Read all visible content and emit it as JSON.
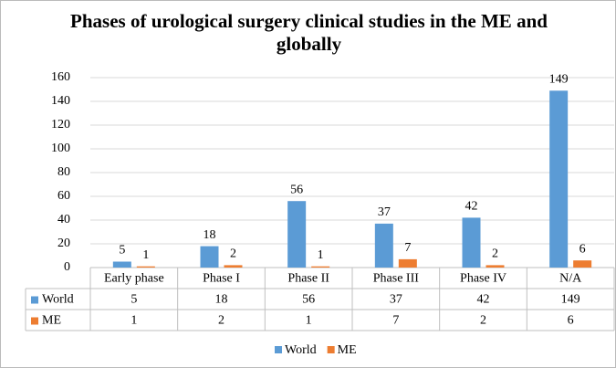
{
  "chart_data": {
    "type": "bar",
    "title": "Phases of urological surgery clinical studies in the ME and globally",
    "categories": [
      "Early phase",
      "Phase I",
      "Phase II",
      "Phase III",
      "Phase IV",
      "N/A"
    ],
    "series": [
      {
        "name": "World",
        "color": "#5b9bd5",
        "values": [
          5,
          18,
          56,
          37,
          42,
          149
        ]
      },
      {
        "name": "ME",
        "color": "#ed7d31",
        "values": [
          1,
          2,
          1,
          7,
          2,
          6
        ]
      }
    ],
    "ylim": [
      0,
      160
    ],
    "yticks": [
      0,
      20,
      40,
      60,
      80,
      100,
      120,
      140,
      160
    ],
    "grid": true,
    "legend": "bottom"
  }
}
